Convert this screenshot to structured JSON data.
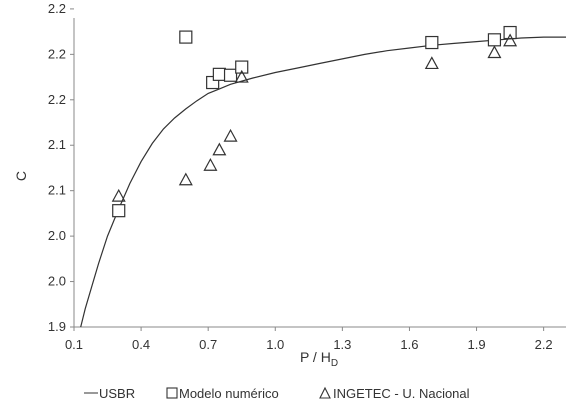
{
  "chart_data": {
    "type": "scatter",
    "xlabel": "P / H",
    "xlabel_sub": "D",
    "ylabel": "C",
    "xlim": [
      0.1,
      2.3
    ],
    "ylim": [
      1.9,
      2.24
    ],
    "x_ticks": [
      0.1,
      0.4,
      0.7,
      1.0,
      1.3,
      1.6,
      1.9,
      2.2
    ],
    "x_tick_labels": [
      "0.1",
      "0.4",
      "0.7",
      "1.0",
      "1.3",
      "1.6",
      "1.9",
      "2.2"
    ],
    "y_ticks": [
      1.9,
      1.95,
      2.0,
      2.05,
      2.1,
      2.15,
      2.2,
      2.25
    ],
    "y_tick_labels": [
      "1.9",
      "2.0",
      "2.0",
      "2.1",
      "2.1",
      "2.2",
      "2.2",
      "2.2"
    ],
    "grid": false,
    "legend_position": "bottom",
    "colors": {
      "series": "#333333",
      "axis": "#888888"
    },
    "series": [
      {
        "name": "USBR",
        "marker": "line",
        "x": [
          0.13,
          0.15,
          0.18,
          0.21,
          0.25,
          0.3,
          0.35,
          0.4,
          0.45,
          0.5,
          0.55,
          0.6,
          0.65,
          0.7,
          0.75,
          0.8,
          0.9,
          1.0,
          1.1,
          1.2,
          1.3,
          1.4,
          1.5,
          1.6,
          1.7,
          1.8,
          1.9,
          2.0,
          2.1,
          2.2,
          2.3
        ],
        "y": [
          1.9,
          1.92,
          1.945,
          1.97,
          2.0,
          2.03,
          2.058,
          2.082,
          2.102,
          2.118,
          2.13,
          2.14,
          2.149,
          2.157,
          2.162,
          2.167,
          2.174,
          2.18,
          2.185,
          2.19,
          2.195,
          2.2,
          2.204,
          2.207,
          2.21,
          2.212,
          2.214,
          2.216,
          2.218,
          2.219,
          2.219
        ]
      },
      {
        "name": "Modelo numérico",
        "marker": "square",
        "x": [
          0.3,
          0.6,
          0.72,
          0.75,
          0.8,
          0.85,
          1.7,
          1.98,
          2.05
        ],
        "y": [
          2.028,
          2.219,
          2.169,
          2.178,
          2.177,
          2.186,
          2.213,
          2.216,
          2.224
        ]
      },
      {
        "name": "INGETEC - U. Nacional",
        "marker": "triangle",
        "x": [
          0.3,
          0.6,
          0.71,
          0.75,
          0.8,
          0.85,
          1.7,
          1.98,
          2.05
        ],
        "y": [
          2.044,
          2.062,
          2.078,
          2.095,
          2.11,
          2.175,
          2.19,
          2.202,
          2.215
        ]
      }
    ]
  }
}
